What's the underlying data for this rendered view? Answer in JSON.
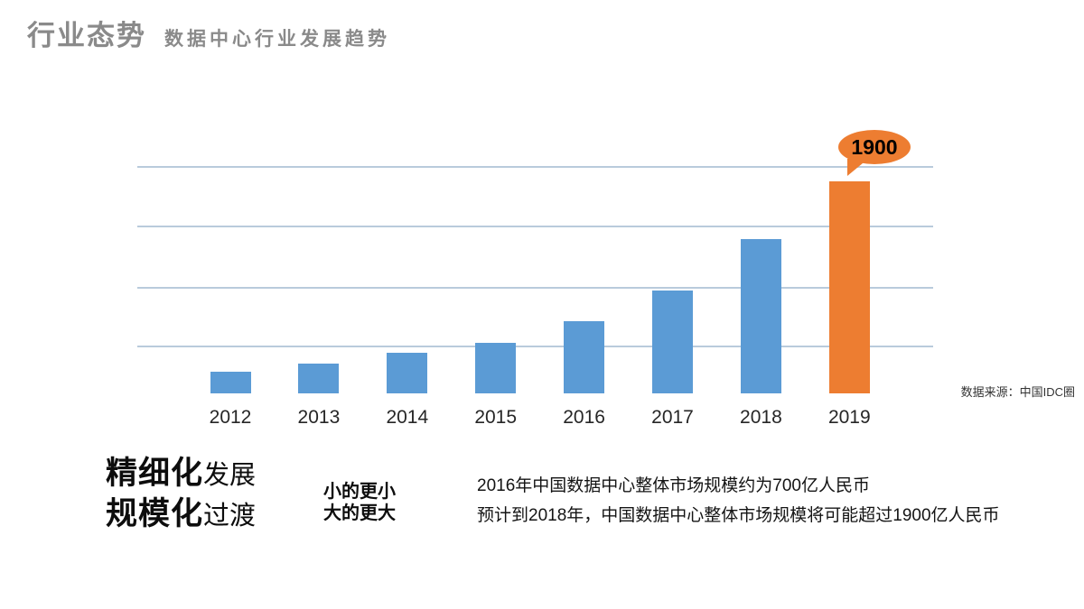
{
  "page": {
    "title": "行业态势",
    "subtitle": "数据中心行业发展趋势"
  },
  "chart_data": {
    "type": "bar",
    "title": "",
    "xlabel": "",
    "ylabel": "",
    "categories": [
      "2012",
      "2013",
      "2014",
      "2015",
      "2016",
      "2017",
      "2018",
      "2019"
    ],
    "values": [
      190,
      265,
      360,
      455,
      650,
      920,
      1380,
      1900
    ],
    "values_note": "estimated from bar heights; 2019 labeled 1900, unit 亿人民币",
    "ylim": [
      0,
      2000
    ],
    "grid": true,
    "gridline_count": 4,
    "legend_position": "none",
    "bar_color": "#5b9bd5",
    "highlight_index": 7,
    "highlight_color": "#ed7d31",
    "highlight_label": "1900",
    "gridline_color": "#b9cbdc",
    "source": "数据来源：中国IDC圈"
  },
  "insights": {
    "slogan_line1_bold": "精细化",
    "slogan_line1_rest": "发展",
    "slogan_line2_bold": "规模化",
    "slogan_line2_rest": "过渡",
    "sub_slogan_line1": "小的更小",
    "sub_slogan_line2": "大的更大",
    "paragraph_line1": "2016年中国数据中心整体市场规模约为700亿人民币",
    "paragraph_line2": "预计到2018年，中国数据中心整体市场规模将可能超过1900亿人民币"
  }
}
